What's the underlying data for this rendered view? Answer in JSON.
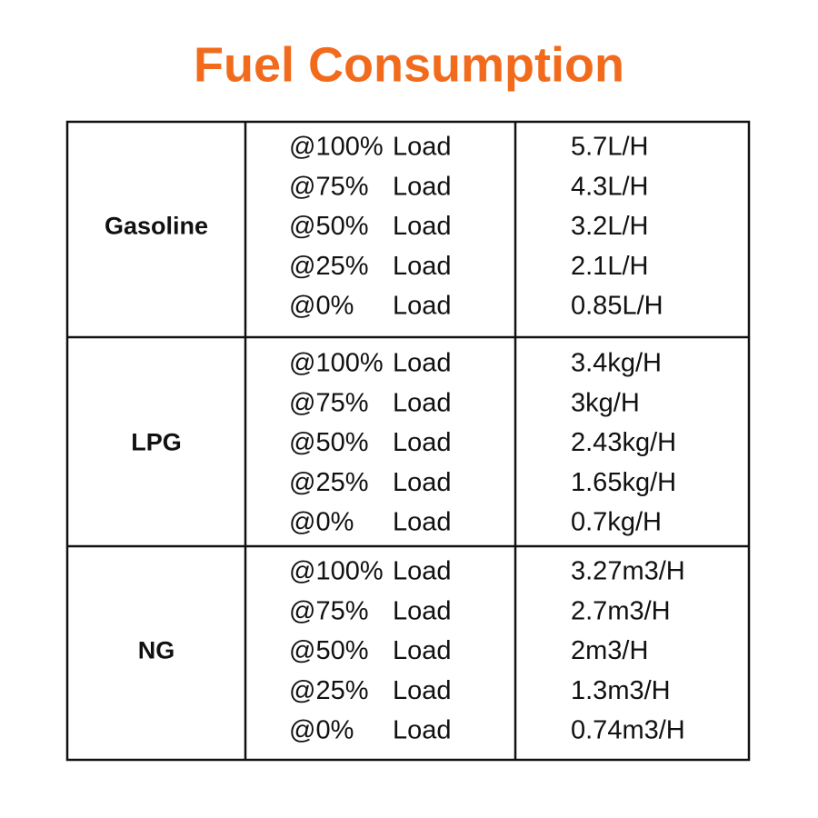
{
  "header": {
    "title": "Fuel Consumption"
  },
  "table": {
    "groups": [
      {
        "fuel": "Gasoline",
        "rows": [
          {
            "percent": "@100%",
            "word": "Load",
            "value": "5.7L/H"
          },
          {
            "percent": "@75%",
            "word": "Load",
            "value": "4.3L/H"
          },
          {
            "percent": "@50%",
            "word": "Load",
            "value": "3.2L/H"
          },
          {
            "percent": "@25%",
            "word": "Load",
            "value": "2.1L/H"
          },
          {
            "percent": "@0%",
            "word": "Load",
            "value": "0.85L/H"
          }
        ]
      },
      {
        "fuel": "LPG",
        "rows": [
          {
            "percent": "@100%",
            "word": "Load",
            "value": "3.4kg/H"
          },
          {
            "percent": "@75%",
            "word": "Load",
            "value": "3kg/H"
          },
          {
            "percent": "@50%",
            "word": "Load",
            "value": "2.43kg/H"
          },
          {
            "percent": "@25%",
            "word": "Load",
            "value": "1.65kg/H"
          },
          {
            "percent": "@0%",
            "word": "Load",
            "value": "0.7kg/H"
          }
        ]
      },
      {
        "fuel": "NG",
        "rows": [
          {
            "percent": "@100%",
            "word": "Load",
            "value": "3.27m3/H"
          },
          {
            "percent": "@75%",
            "word": "Load",
            "value": "2.7m3/H"
          },
          {
            "percent": "@50%",
            "word": "Load",
            "value": "2m3/H"
          },
          {
            "percent": "@25%",
            "word": "Load",
            "value": "1.3m3/H"
          },
          {
            "percent": "@0%",
            "word": "Load",
            "value": "0.74m3/H"
          }
        ]
      }
    ]
  }
}
